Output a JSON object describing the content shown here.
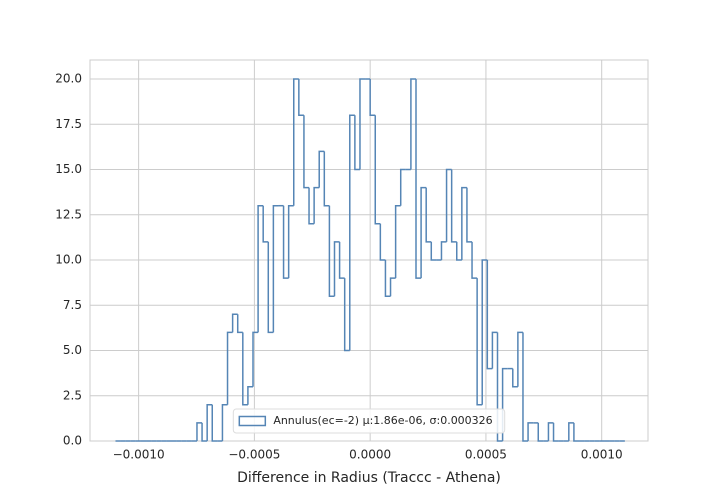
{
  "chart_data": {
    "type": "histogram",
    "xlabel": "Difference in Radius (Traccc - Athena)",
    "series": [
      {
        "name": "Annulus(ec=-2) μ:1.86e-06, σ:0.000326",
        "color": "#5585b5",
        "bins": [
          -0.0011,
          -0.001078,
          -0.001056,
          -0.001034,
          -0.001012,
          -0.00099,
          -0.000968,
          -0.000946,
          -0.000924,
          -0.000902,
          -0.00088,
          -0.000858,
          -0.000836,
          -0.000814,
          -0.000792,
          -0.00077,
          -0.000748,
          -0.000726,
          -0.000704,
          -0.000682,
          -0.00066,
          -0.000638,
          -0.000616,
          -0.000594,
          -0.000572,
          -0.00055,
          -0.000528,
          -0.000506,
          -0.000484,
          -0.000462,
          -0.00044,
          -0.000418,
          -0.000396,
          -0.000374,
          -0.000352,
          -0.00033,
          -0.000308,
          -0.000286,
          -0.000264,
          -0.000242,
          -0.00022,
          -0.000198,
          -0.000176,
          -0.000154,
          -0.000132,
          -0.00011,
          -8.8e-05,
          -6.6e-05,
          -4.4e-05,
          -2.2e-05,
          0,
          2.2e-05,
          4.4e-05,
          6.6e-05,
          8.8e-05,
          0.00011,
          0.000132,
          0.000154,
          0.000176,
          0.000198,
          0.00022,
          0.000242,
          0.000264,
          0.000286,
          0.000308,
          0.00033,
          0.000352,
          0.000374,
          0.000396,
          0.000418,
          0.00044,
          0.000462,
          0.000484,
          0.000506,
          0.000528,
          0.00055,
          0.000572,
          0.000594,
          0.000616,
          0.000638,
          0.00066,
          0.000682,
          0.000704,
          0.000726,
          0.000748,
          0.00077,
          0.000792,
          0.000814,
          0.000836,
          0.000858,
          0.00088,
          0.000902,
          0.000924,
          0.000946,
          0.000968,
          0.00099,
          0.001012,
          0.001034,
          0.001056,
          0.001078,
          0.0011
        ],
        "values": [
          0,
          0,
          0,
          0,
          0,
          0,
          0,
          0,
          0,
          0,
          0,
          0,
          0,
          0,
          0,
          0,
          1,
          0,
          2,
          0,
          0,
          2,
          6,
          7,
          6,
          2,
          3,
          6,
          13,
          11,
          6,
          13,
          13,
          9,
          13,
          20,
          18,
          14,
          12,
          14,
          16,
          13,
          8,
          11,
          9,
          5,
          18,
          15,
          20,
          20,
          18,
          12,
          10,
          8,
          9,
          13,
          15,
          15,
          20,
          9,
          14,
          11,
          10,
          10,
          11,
          15,
          11,
          10,
          14,
          11,
          9,
          2,
          10,
          4,
          6,
          0,
          4,
          4,
          3,
          6,
          0,
          1,
          1,
          0,
          0,
          1,
          0,
          0,
          0,
          1,
          0,
          0,
          0,
          0,
          0,
          0,
          0,
          0,
          0,
          0
        ]
      }
    ],
    "xlim": [
      -0.00121,
      0.0012
    ],
    "ylim": [
      0,
      21.05
    ],
    "xticks": [
      {
        "value": -0.001,
        "label": "−0.0010"
      },
      {
        "value": -0.0005,
        "label": "−0.0005"
      },
      {
        "value": 0,
        "label": "0.0000"
      },
      {
        "value": 0.0005,
        "label": "0.0005"
      },
      {
        "value": 0.001,
        "label": "0.0010"
      }
    ],
    "yticks": [
      {
        "value": 0,
        "label": "0.0"
      },
      2.5,
      {
        "value": 5,
        "label": "5.0"
      },
      7.5,
      {
        "value": 10,
        "label": "10.0"
      },
      12.5,
      {
        "value": 15,
        "label": "15.0"
      },
      17.5,
      {
        "value": 20,
        "label": "20.0"
      }
    ],
    "grid": true,
    "legend": "lower center"
  }
}
